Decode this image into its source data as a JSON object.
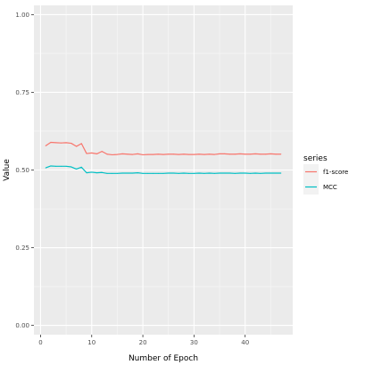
{
  "chart_data": {
    "type": "line",
    "xlabel": "Number of Epoch",
    "ylabel": "Value",
    "xlim": [
      0,
      47
    ],
    "ylim": [
      0,
      1
    ],
    "x_ticks": [
      0,
      10,
      20,
      30,
      40
    ],
    "x_tick_labels": [
      "0",
      "10",
      "20",
      "30",
      "40"
    ],
    "y_ticks": [
      0,
      0.25,
      0.5,
      0.75,
      1
    ],
    "y_tick_labels": [
      "0.00",
      "0.25",
      "0.50",
      "0.75",
      "1.00"
    ],
    "grid": true,
    "legend": {
      "title": "series",
      "placement": "right"
    },
    "x": [
      1,
      2,
      3,
      4,
      5,
      6,
      7,
      8,
      9,
      10,
      11,
      12,
      13,
      14,
      15,
      16,
      17,
      18,
      19,
      20,
      21,
      22,
      23,
      24,
      25,
      26,
      27,
      28,
      29,
      30,
      31,
      32,
      33,
      34,
      35,
      36,
      37,
      38,
      39,
      40,
      41,
      42,
      43,
      44,
      45,
      46,
      47
    ],
    "series": [
      {
        "name": "f1-score",
        "color": "#F8766D",
        "values": [
          0.578,
          0.589,
          0.588,
          0.587,
          0.588,
          0.586,
          0.576,
          0.585,
          0.553,
          0.555,
          0.552,
          0.56,
          0.551,
          0.549,
          0.55,
          0.552,
          0.551,
          0.55,
          0.552,
          0.549,
          0.55,
          0.55,
          0.551,
          0.55,
          0.551,
          0.551,
          0.55,
          0.551,
          0.55,
          0.55,
          0.551,
          0.55,
          0.551,
          0.55,
          0.552,
          0.552,
          0.551,
          0.551,
          0.552,
          0.551,
          0.551,
          0.552,
          0.551,
          0.551,
          0.552,
          0.551,
          0.551
        ]
      },
      {
        "name": "MCC",
        "color": "#00BFC4",
        "values": [
          0.507,
          0.513,
          0.512,
          0.512,
          0.512,
          0.51,
          0.503,
          0.509,
          0.491,
          0.493,
          0.491,
          0.492,
          0.489,
          0.489,
          0.489,
          0.49,
          0.49,
          0.49,
          0.491,
          0.489,
          0.489,
          0.489,
          0.489,
          0.489,
          0.49,
          0.49,
          0.489,
          0.49,
          0.489,
          0.489,
          0.49,
          0.489,
          0.49,
          0.489,
          0.49,
          0.49,
          0.49,
          0.489,
          0.49,
          0.49,
          0.489,
          0.49,
          0.489,
          0.49,
          0.49,
          0.49,
          0.49
        ]
      }
    ]
  }
}
